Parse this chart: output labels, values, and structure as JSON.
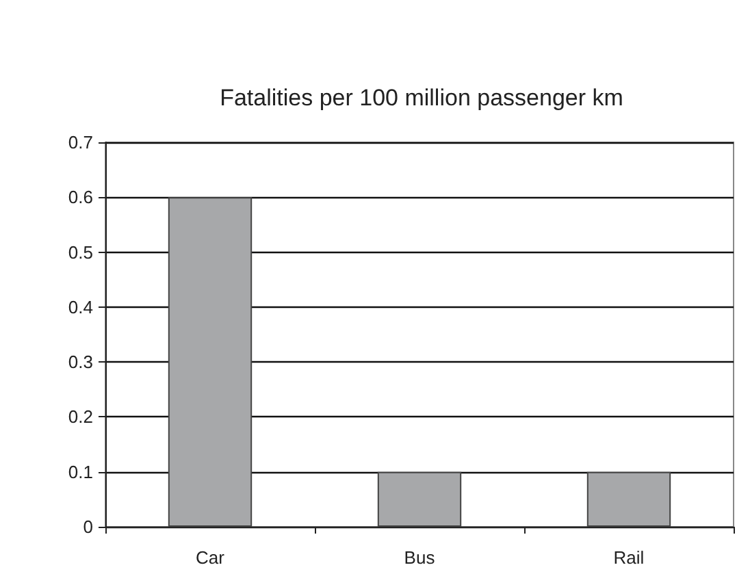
{
  "chart_data": {
    "type": "bar",
    "title": "Fatalities per 100 million passenger km",
    "categories": [
      "Car",
      "Bus",
      "Rail"
    ],
    "values": [
      0.6,
      0.1,
      0.1
    ],
    "color": "#a7a8aa",
    "ylim": [
      0,
      0.7
    ],
    "yticks": [
      0,
      0.1,
      0.2,
      0.3,
      0.4,
      0.5,
      0.6,
      0.7
    ],
    "grid": "y"
  }
}
